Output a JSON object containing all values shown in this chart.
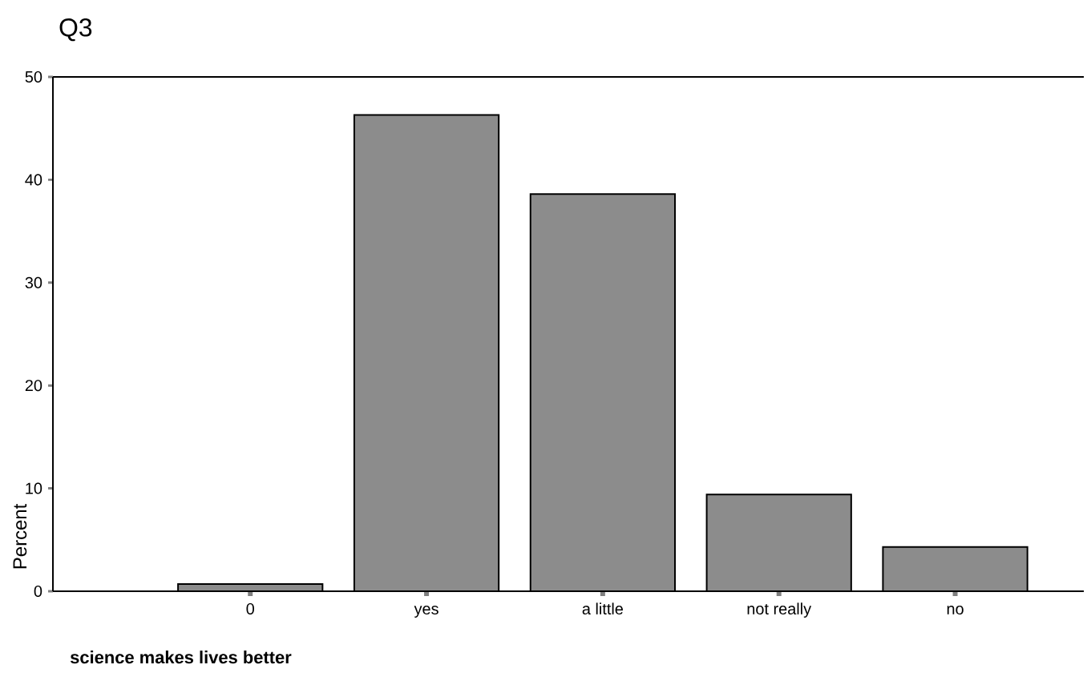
{
  "chart_data": {
    "type": "bar",
    "title": "Q3",
    "xlabel": "science makes lives better",
    "ylabel": "Percent",
    "categories": [
      "0",
      "yes",
      "a little",
      "not really",
      "no"
    ],
    "values": [
      0.7,
      46.3,
      38.6,
      9.4,
      4.3
    ],
    "color": "#8c8c8c",
    "ylim": [
      0,
      50
    ],
    "yticks": [
      0,
      10,
      20,
      30,
      40,
      50
    ]
  }
}
